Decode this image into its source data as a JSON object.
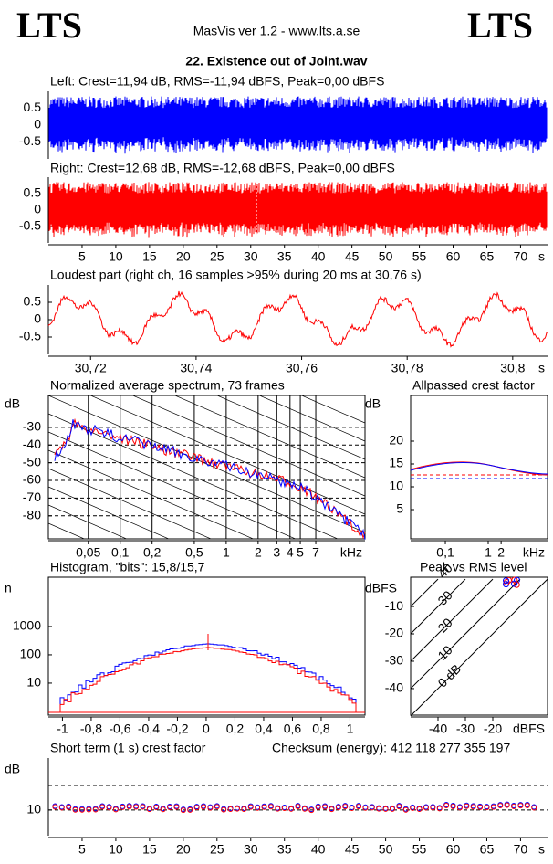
{
  "header": {
    "logo_left": "LTS",
    "logo_right": "LTS",
    "app": "MasVis ver 1.2 - www.lts.a.se",
    "file": "22. Existence out of Joint.wav"
  },
  "panels": {
    "left": {
      "title": "Left: Crest=11,94 dB, RMS=-11,94 dBFS, Peak=0,00 dBFS",
      "ylim": [
        -1,
        1
      ],
      "yticks": [
        0.5,
        0,
        -0.5
      ]
    },
    "right": {
      "title": "Right: Crest=12,68 dB, RMS=-12,68 dBFS, Peak=0,00 dBFS",
      "ylim": [
        -1,
        1
      ],
      "yticks": [
        0.5,
        0,
        -0.5
      ],
      "xlim": [
        0,
        74
      ],
      "xticks": [
        5,
        10,
        15,
        20,
        25,
        30,
        35,
        40,
        45,
        50,
        55,
        60,
        65,
        70
      ],
      "xunit": "s"
    },
    "loudest": {
      "title": "Loudest part (right ch, 16 samples >95% during 20 ms at 30,76 s)",
      "ylim": [
        -1,
        1
      ],
      "yticks": [
        0.5,
        0,
        -0.5
      ],
      "xlim": [
        30.712,
        30.8066
      ],
      "xticks": [
        {
          "value": 30.72,
          "label": "30,72"
        },
        {
          "value": 30.74,
          "label": "30,74"
        },
        {
          "value": 30.76,
          "label": "30,76"
        },
        {
          "value": 30.78,
          "label": "30,78"
        },
        {
          "value": 30.8,
          "label": "30,8"
        }
      ],
      "xunit": "s"
    },
    "spectrum": {
      "title": "Normalized average spectrum, 73 frames",
      "yunit": "dB",
      "ylim": [
        -93,
        -12
      ],
      "yticks": [
        -30,
        -40,
        -50,
        -60,
        -70,
        -80
      ],
      "xscale": "log",
      "xlim": [
        0.021,
        20.4
      ],
      "xticks": [
        {
          "value": 0.05,
          "label": "0,05"
        },
        {
          "value": 0.1,
          "label": "0,1"
        },
        {
          "value": 0.2,
          "label": "0,2"
        },
        {
          "value": 0.5,
          "label": "0,5"
        },
        1,
        2,
        3,
        4,
        5,
        7
      ],
      "xunit": "kHz"
    },
    "allpass": {
      "title": "Allpassed crest factor",
      "yunit": "dB",
      "ylim": [
        -1.4,
        30
      ],
      "yticks": [
        20,
        15,
        10,
        5
      ],
      "xscale": "log",
      "xlim": [
        0.0155,
        24.2
      ],
      "xticks": [
        {
          "value": 0.1,
          "label": "0,1"
        },
        1,
        2
      ],
      "xunit": "kHz"
    },
    "histogram": {
      "title": "Histogram, \"bits\": 15,8/15,7",
      "yunit": "n",
      "yscale": "log",
      "ylim": [
        0.74,
        55000
      ],
      "yticks": [
        1000,
        100,
        10
      ],
      "xlim": [
        -1.098,
        1.105
      ],
      "xticks": [
        -1,
        {
          "value": -0.8,
          "label": "-0,8"
        },
        {
          "value": -0.6,
          "label": "-0,6"
        },
        {
          "value": -0.4,
          "label": "-0,4"
        },
        {
          "value": -0.2,
          "label": "-0,2"
        },
        0,
        {
          "value": 0.2,
          "label": "0,2"
        },
        {
          "value": 0.4,
          "label": "0,4"
        },
        {
          "value": 0.6,
          "label": "0,6"
        },
        {
          "value": 0.8,
          "label": "0,8"
        },
        1
      ]
    },
    "peakrms": {
      "title": "Peak vs RMS level",
      "yunit": "dBFS",
      "ylim": [
        -49.7,
        0.7
      ],
      "yticks": [
        -10,
        -20,
        -30,
        -40
      ],
      "xlim": [
        -50,
        0
      ],
      "xticks": [
        -40,
        -30,
        -20
      ],
      "xunit": "dBFS",
      "diagonals": [
        "40",
        "30",
        "20",
        "10",
        "0 dB"
      ]
    },
    "short": {
      "title": "Short term (1 s) crest factor",
      "checksum": "Checksum (energy):  412 118 277 355 197",
      "yunit": "dB",
      "ylim": [
        -0.4,
        31
      ],
      "yticks": [
        10
      ],
      "xlim": [
        0,
        74
      ],
      "xticks": [
        5,
        10,
        15,
        20,
        25,
        30,
        35,
        40,
        45,
        50,
        55,
        60,
        65,
        70
      ],
      "xunit": "s"
    }
  }
}
